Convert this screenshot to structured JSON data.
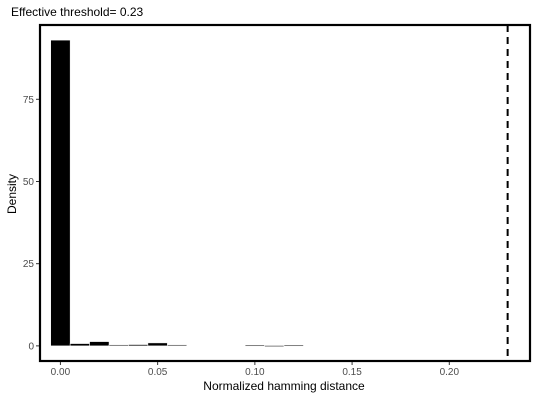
{
  "chart_data": {
    "type": "bar",
    "title": "Effective threshold= 0.23",
    "xlabel": "Normalized hamming distance",
    "ylabel": "Density",
    "xlim": [
      -0.0105,
      0.2415
    ],
    "ylim": [
      -4.6,
      97.6
    ],
    "x_ticks": [
      0.0,
      0.05,
      0.1,
      0.15,
      0.2
    ],
    "x_tick_labels": [
      "0.00",
      "0.05",
      "0.10",
      "0.15",
      "0.20"
    ],
    "y_ticks": [
      0,
      25,
      50,
      75
    ],
    "y_tick_labels": [
      "0",
      "25",
      "50",
      "75"
    ],
    "bin_width": 0.01,
    "bins": [
      {
        "x": 0.0,
        "density": 93.0
      },
      {
        "x": 0.01,
        "density": 0.7
      },
      {
        "x": 0.02,
        "density": 1.3
      },
      {
        "x": 0.03,
        "density": 0.3
      },
      {
        "x": 0.04,
        "density": 0.4
      },
      {
        "x": 0.05,
        "density": 0.9
      },
      {
        "x": 0.06,
        "density": 0.3
      },
      {
        "x": 0.07,
        "density": 0.0
      },
      {
        "x": 0.08,
        "density": 0.0
      },
      {
        "x": 0.09,
        "density": 0.0
      },
      {
        "x": 0.1,
        "density": 0.2
      },
      {
        "x": 0.11,
        "density": 0.1
      },
      {
        "x": 0.12,
        "density": 0.2
      }
    ],
    "threshold": 0.23,
    "threshold_line_style": "dashed",
    "grid": false,
    "colors": {
      "bar_fill": "#000000",
      "bar_outline": "#ffffff",
      "axis": "#000000",
      "tick_label": "#4d4d4d"
    }
  }
}
